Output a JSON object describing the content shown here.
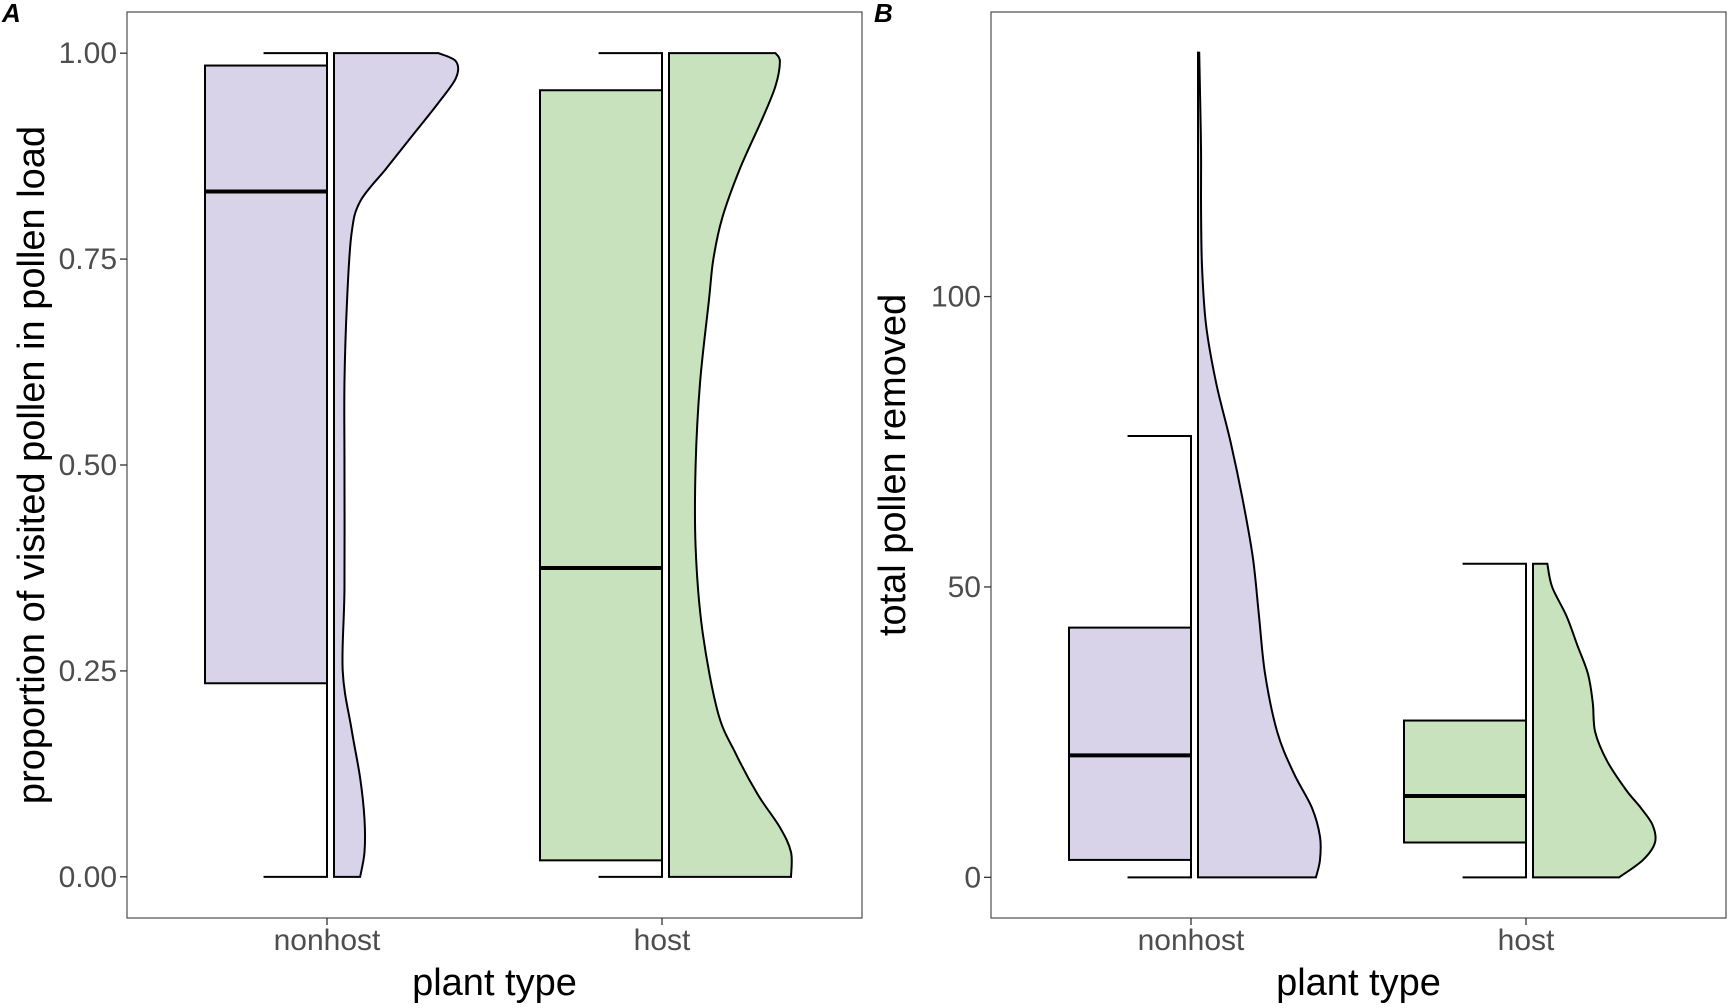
{
  "colors": {
    "nonhost": "#d8d3e8",
    "host": "#c8e2bd"
  },
  "chart_data": [
    {
      "panel": "A",
      "type": "box+half-violin",
      "xlabel": "plant type",
      "ylabel": "proportion of visited pollen in pollen load",
      "categories": [
        "nonhost",
        "host"
      ],
      "ylim": [
        -0.05,
        1.05
      ],
      "yticks": [
        0,
        0.25,
        0.5,
        0.75,
        1.0
      ],
      "ytick_labels": [
        "0.00",
        "0.25",
        "0.50",
        "0.75",
        "1.00"
      ],
      "grid": false,
      "boxes": [
        {
          "category": "nonhost",
          "whisker_min": 0.0,
          "q1": 0.235,
          "median": 0.832,
          "q3": 0.985,
          "whisker_max": 1.0
        },
        {
          "category": "host",
          "whisker_min": 0.0,
          "q1": 0.02,
          "median": 0.375,
          "q3": 0.955,
          "whisker_max": 1.0
        }
      ],
      "violins": [
        {
          "category": "nonhost",
          "y": [
            0,
            0.03,
            0.07,
            0.12,
            0.18,
            0.25,
            0.35,
            0.5,
            0.6,
            0.7,
            0.78,
            0.82,
            0.86,
            0.9,
            0.94,
            0.97,
            0.99,
            1.0
          ],
          "density": [
            0.03,
            0.035,
            0.035,
            0.03,
            0.02,
            0.01,
            0.012,
            0.012,
            0.012,
            0.015,
            0.02,
            0.03,
            0.06,
            0.09,
            0.12,
            0.14,
            0.14,
            0.12
          ]
        },
        {
          "category": "host",
          "y": [
            0,
            0.03,
            0.06,
            0.1,
            0.15,
            0.2,
            0.3,
            0.4,
            0.5,
            0.6,
            0.7,
            0.75,
            0.8,
            0.86,
            0.92,
            0.96,
            0.99,
            1.0
          ],
          "density": [
            0.055,
            0.055,
            0.05,
            0.04,
            0.03,
            0.022,
            0.015,
            0.012,
            0.012,
            0.014,
            0.018,
            0.02,
            0.024,
            0.032,
            0.042,
            0.048,
            0.05,
            0.048
          ]
        }
      ]
    },
    {
      "panel": "B",
      "type": "box+half-violin",
      "xlabel": "plant type",
      "ylabel": "total pollen removed",
      "categories": [
        "nonhost",
        "host"
      ],
      "ylim": [
        -7,
        149
      ],
      "yticks": [
        0,
        50,
        100
      ],
      "ytick_labels": [
        "0",
        "50",
        "100"
      ],
      "grid": false,
      "boxes": [
        {
          "category": "nonhost",
          "whisker_min": 0,
          "q1": 3,
          "median": 21,
          "q3": 43,
          "whisker_max": 76
        },
        {
          "category": "host",
          "whisker_min": 0,
          "q1": 6,
          "median": 14,
          "q3": 27,
          "whisker_max": 54
        }
      ],
      "violins": [
        {
          "category": "nonhost",
          "y": [
            0,
            3,
            7,
            12,
            18,
            25,
            35,
            45,
            55,
            65,
            75,
            85,
            95,
            105,
            115,
            125,
            135,
            142
          ],
          "density": [
            0.058,
            0.06,
            0.06,
            0.056,
            0.047,
            0.039,
            0.033,
            0.03,
            0.027,
            0.022,
            0.016,
            0.009,
            0.004,
            0.002,
            0.0015,
            0.0015,
            0.001,
            0.0006
          ]
        },
        {
          "category": "host",
          "y": [
            0,
            3,
            6,
            9,
            12,
            15,
            20,
            25,
            30,
            35,
            40,
            45,
            50,
            54
          ],
          "density": [
            0.072,
            0.092,
            0.102,
            0.1,
            0.09,
            0.078,
            0.062,
            0.052,
            0.05,
            0.046,
            0.037,
            0.028,
            0.016,
            0.012
          ]
        }
      ]
    }
  ]
}
